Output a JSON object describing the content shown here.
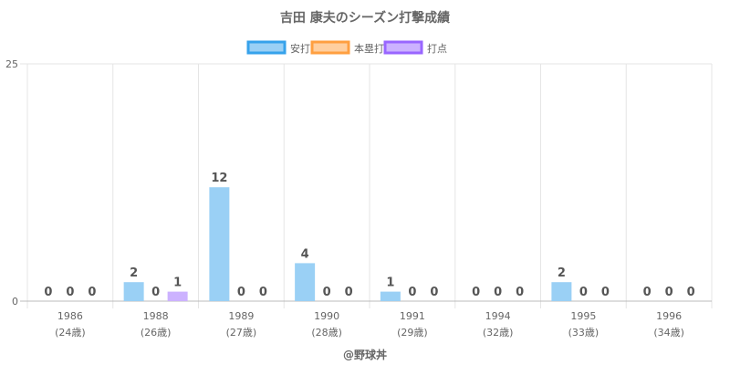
{
  "chart_data": {
    "type": "bar",
    "title": "吉田 康夫のシーズン打撃成績",
    "categories": [
      "1986",
      "1988",
      "1989",
      "1990",
      "1991",
      "1994",
      "1995",
      "1996"
    ],
    "category_sublabels": [
      "(24歳)",
      "(26歳)",
      "(27歳)",
      "(28歳)",
      "(29歳)",
      "(32歳)",
      "(33歳)",
      "(34歳)"
    ],
    "series": [
      {
        "name": "安打",
        "values": [
          0,
          2,
          12,
          4,
          1,
          0,
          2,
          0
        ],
        "color": "#9ad0f5",
        "border": "#36a2eb"
      },
      {
        "name": "本塁打",
        "values": [
          0,
          0,
          0,
          0,
          0,
          0,
          0,
          0
        ],
        "color": "#ffcf9f",
        "border": "#ff9f40"
      },
      {
        "name": "打点",
        "values": [
          0,
          1,
          0,
          0,
          0,
          0,
          0,
          0
        ],
        "color": "#ccb2ff",
        "border": "#9966ff"
      }
    ],
    "ylim": [
      0,
      25
    ],
    "yticks": [
      0,
      25
    ],
    "grid": true,
    "legend_position": "top"
  },
  "credit": "@野球丼"
}
